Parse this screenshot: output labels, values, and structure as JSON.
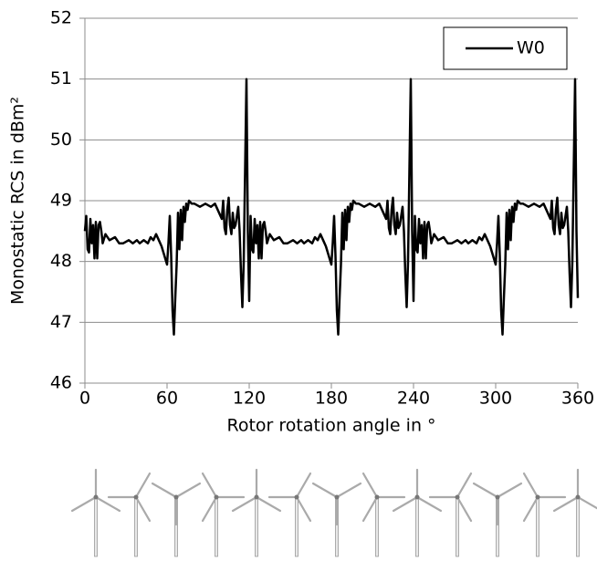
{
  "chart_data": {
    "type": "line",
    "x_label": "Rotor rotation angle in °",
    "y_label": "Monostatic RCS in dBm²",
    "xlim": [
      0,
      360
    ],
    "xticks": [
      0,
      60,
      120,
      180,
      240,
      300,
      360
    ],
    "ylim": [
      46,
      52
    ],
    "yticks": [
      46,
      47,
      48,
      49,
      50,
      51,
      52
    ],
    "grid": true,
    "legend": "upper right",
    "series": [
      {
        "name": "W0",
        "color": "#000000",
        "x": [
          0,
          1,
          2,
          3,
          4,
          5,
          6,
          7,
          8,
          9,
          10,
          11,
          12,
          13,
          15,
          18,
          22,
          25,
          28,
          32,
          35,
          38,
          40,
          43,
          46,
          48,
          50,
          52,
          54,
          56,
          58,
          60,
          61,
          62,
          63,
          64,
          65,
          66,
          67,
          68,
          69,
          70,
          71,
          72,
          73,
          74,
          75,
          76,
          78,
          80,
          84,
          88,
          92,
          95,
          98,
          100,
          101,
          102,
          103,
          104,
          105,
          106,
          107,
          108,
          109,
          110,
          112,
          113,
          114,
          115,
          116,
          117,
          118,
          119,
          120,
          121,
          122,
          123,
          124,
          125,
          126,
          127,
          128,
          129,
          130,
          131,
          132,
          133,
          135,
          138,
          142,
          145,
          148,
          152,
          155,
          158,
          160,
          163,
          166,
          168,
          170,
          172,
          174,
          176,
          178,
          180,
          181,
          182,
          183,
          184,
          185,
          186,
          187,
          188,
          189,
          190,
          191,
          192,
          193,
          194,
          195,
          196,
          198,
          200,
          204,
          208,
          212,
          215,
          218,
          220,
          221,
          222,
          223,
          224,
          225,
          226,
          227,
          228,
          229,
          230,
          232,
          233,
          234,
          235,
          236,
          237,
          238,
          239,
          240,
          241,
          242,
          243,
          244,
          245,
          246,
          247,
          248,
          249,
          250,
          251,
          252,
          253,
          255,
          258,
          262,
          265,
          268,
          272,
          275,
          278,
          280,
          283,
          286,
          288,
          290,
          292,
          294,
          296,
          298,
          300,
          301,
          302,
          303,
          304,
          305,
          306,
          307,
          308,
          309,
          310,
          311,
          312,
          313,
          314,
          315,
          316,
          318,
          320,
          324,
          328,
          332,
          335,
          338,
          340,
          341,
          342,
          343,
          344,
          345,
          346,
          347,
          348,
          349,
          350,
          352,
          353,
          354,
          355,
          356,
          357,
          358,
          359,
          360
        ],
        "values": [
          48.5,
          48.75,
          48.2,
          48.15,
          48.7,
          48.3,
          48.6,
          48.05,
          48.65,
          48.05,
          48.6,
          48.65,
          48.5,
          48.3,
          48.45,
          48.35,
          48.4,
          48.3,
          48.3,
          48.35,
          48.3,
          48.35,
          48.3,
          48.35,
          48.3,
          48.4,
          48.35,
          48.45,
          48.35,
          48.25,
          48.1,
          47.95,
          48.3,
          48.75,
          48.1,
          47.2,
          46.8,
          47.4,
          47.95,
          48.8,
          48.2,
          48.85,
          48.35,
          48.9,
          48.65,
          48.95,
          48.85,
          49.0,
          48.95,
          48.95,
          48.9,
          48.95,
          48.9,
          48.95,
          48.8,
          48.7,
          49.0,
          48.55,
          48.45,
          48.85,
          49.05,
          48.6,
          48.45,
          48.8,
          48.55,
          48.6,
          48.9,
          48.5,
          47.8,
          47.25,
          48.0,
          49.5,
          51.0,
          48.5,
          47.35,
          48.75,
          48.2,
          48.15,
          48.7,
          48.3,
          48.6,
          48.05,
          48.65,
          48.05,
          48.6,
          48.65,
          48.5,
          48.3,
          48.45,
          48.35,
          48.4,
          48.3,
          48.3,
          48.35,
          48.3,
          48.35,
          48.3,
          48.35,
          48.3,
          48.4,
          48.35,
          48.45,
          48.35,
          48.25,
          48.1,
          47.95,
          48.3,
          48.75,
          48.1,
          47.2,
          46.8,
          47.4,
          47.95,
          48.8,
          48.2,
          48.85,
          48.35,
          48.9,
          48.65,
          48.95,
          48.85,
          49.0,
          48.95,
          48.95,
          48.9,
          48.95,
          48.9,
          48.95,
          48.8,
          48.7,
          49.0,
          48.55,
          48.45,
          48.85,
          49.05,
          48.6,
          48.45,
          48.8,
          48.55,
          48.6,
          48.9,
          48.5,
          47.8,
          47.25,
          48.0,
          49.5,
          51.0,
          48.5,
          47.35,
          48.75,
          48.2,
          48.15,
          48.7,
          48.3,
          48.6,
          48.05,
          48.65,
          48.05,
          48.6,
          48.65,
          48.5,
          48.3,
          48.45,
          48.35,
          48.4,
          48.3,
          48.3,
          48.35,
          48.3,
          48.35,
          48.3,
          48.35,
          48.3,
          48.4,
          48.35,
          48.45,
          48.35,
          48.25,
          48.1,
          47.95,
          48.3,
          48.75,
          48.1,
          47.2,
          46.8,
          47.4,
          47.95,
          48.8,
          48.2,
          48.85,
          48.35,
          48.9,
          48.65,
          48.95,
          48.85,
          49.0,
          48.95,
          48.95,
          48.9,
          48.95,
          48.9,
          48.95,
          48.8,
          48.7,
          49.0,
          48.55,
          48.45,
          48.85,
          49.05,
          48.6,
          48.45,
          48.8,
          48.55,
          48.6,
          48.9,
          48.5,
          47.8,
          47.25,
          48.0,
          49.5,
          51.0,
          48.5,
          47.4
        ]
      }
    ]
  }
}
